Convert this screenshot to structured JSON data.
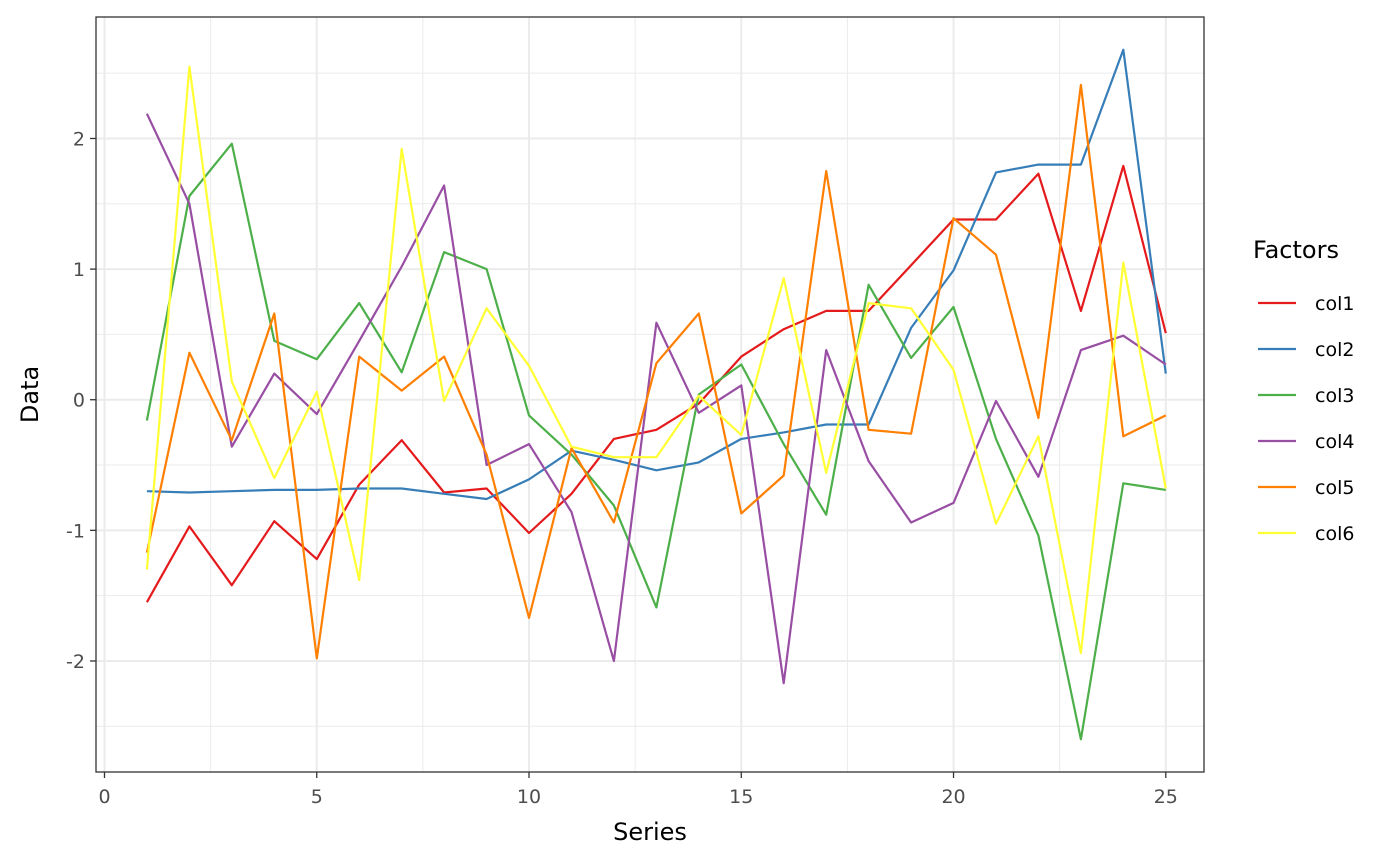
{
  "chart_data": {
    "type": "line",
    "title": "",
    "xlabel": "Series",
    "ylabel": "Data",
    "xlim": [
      -0.2,
      25.9
    ],
    "ylim": [
      -2.85,
      2.93
    ],
    "x_ticks": [
      0,
      5,
      10,
      15,
      20,
      25
    ],
    "x_tick_labels": [
      "0",
      "5",
      "10",
      "15",
      "20",
      "25"
    ],
    "y_ticks": [
      -2,
      -1,
      0,
      1,
      2
    ],
    "y_tick_labels": [
      "-2",
      "-1",
      "0",
      "1",
      "2"
    ],
    "grid": true,
    "legend": {
      "title": "Factors",
      "position": "right"
    },
    "x": [
      1,
      2,
      3,
      4,
      5,
      6,
      7,
      8,
      9,
      10,
      11,
      12,
      13,
      14,
      15,
      16,
      17,
      18,
      19,
      20,
      21,
      22,
      23,
      24,
      25
    ],
    "series": [
      {
        "name": "col1",
        "color": "#e41a1c",
        "values": [
          -1.55,
          -0.97,
          -1.42,
          -0.93,
          -1.22,
          -0.65,
          -0.31,
          -0.71,
          -0.68,
          -1.02,
          -0.72,
          -0.3,
          -0.23,
          -0.03,
          0.33,
          0.54,
          0.68,
          0.68,
          1.03,
          1.38,
          1.38,
          1.73,
          0.68,
          1.79,
          0.51
        ]
      },
      {
        "name": "col2",
        "color": "#377eb8",
        "values": [
          -0.7,
          -0.71,
          -0.7,
          -0.69,
          -0.69,
          -0.68,
          -0.68,
          -0.72,
          -0.76,
          -0.61,
          -0.39,
          -0.46,
          -0.54,
          -0.48,
          -0.3,
          -0.25,
          -0.19,
          -0.19,
          0.55,
          0.99,
          1.74,
          1.8,
          1.8,
          2.68,
          0.2
        ]
      },
      {
        "name": "col3",
        "color": "#4daf4a",
        "values": [
          -0.16,
          1.56,
          1.96,
          0.45,
          0.31,
          0.74,
          0.21,
          1.13,
          1.0,
          -0.12,
          -0.42,
          -0.81,
          -1.59,
          0.04,
          0.27,
          -0.34,
          -0.88,
          0.88,
          0.32,
          0.71,
          -0.3,
          -1.04,
          -2.6,
          -0.64,
          -0.69
        ]
      },
      {
        "name": "col4",
        "color": "#984ea3",
        "values": [
          2.19,
          1.5,
          -0.36,
          0.2,
          -0.11,
          0.45,
          1.02,
          1.64,
          -0.5,
          -0.34,
          -0.86,
          -2.0,
          0.59,
          -0.1,
          0.11,
          -2.17,
          0.38,
          -0.47,
          -0.94,
          -0.79,
          -0.01,
          -0.59,
          0.38,
          0.49,
          0.27
        ]
      },
      {
        "name": "col5",
        "color": "#ff7f00",
        "values": [
          -1.17,
          0.36,
          -0.31,
          0.66,
          -1.98,
          0.33,
          0.07,
          0.33,
          -0.42,
          -1.67,
          -0.37,
          -0.94,
          0.28,
          0.66,
          -0.87,
          -0.58,
          1.75,
          -0.23,
          -0.26,
          1.39,
          1.11,
          -0.14,
          2.41,
          -0.28,
          -0.12
        ]
      },
      {
        "name": "col6",
        "color": "#ffff33",
        "values": [
          -1.3,
          2.55,
          0.14,
          -0.6,
          0.06,
          -1.38,
          1.92,
          -0.01,
          0.7,
          0.26,
          -0.36,
          -0.44,
          -0.44,
          0.03,
          -0.27,
          0.93,
          -0.56,
          0.74,
          0.7,
          0.23,
          -0.95,
          -0.28,
          -1.94,
          1.05,
          -0.68
        ]
      }
    ]
  }
}
